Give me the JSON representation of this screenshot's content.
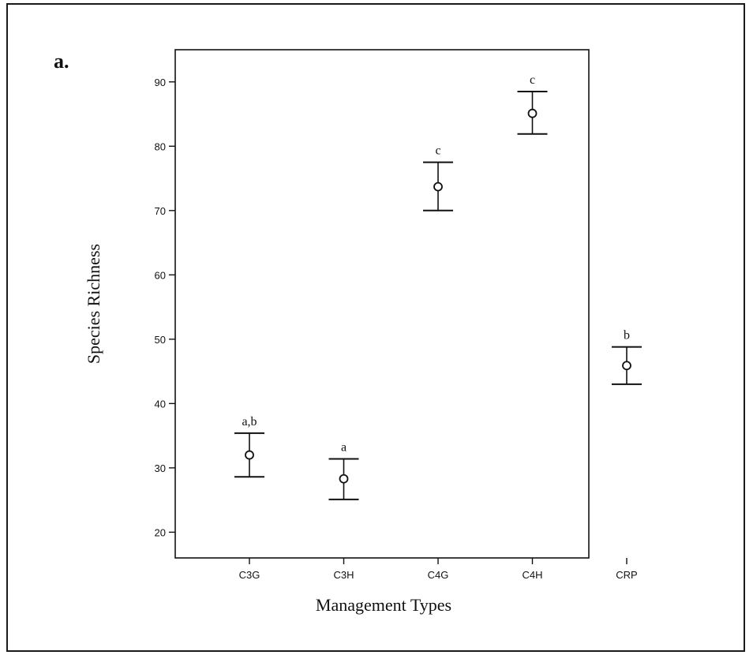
{
  "panel_label": "a.",
  "chart_data": {
    "type": "scatter",
    "subtype": "error-bar",
    "title": "",
    "xlabel": "Management Types",
    "ylabel": "Species Richness",
    "categories": [
      "C3G",
      "C3H",
      "C4G",
      "C4H",
      "CRP"
    ],
    "means": [
      32.0,
      28.3,
      73.7,
      85.1,
      45.9
    ],
    "lower": [
      28.6,
      25.1,
      70.0,
      81.9,
      43.0
    ],
    "upper": [
      35.4,
      31.4,
      77.5,
      88.5,
      48.8
    ],
    "annotations": [
      "a,b",
      "a",
      "c",
      "c",
      "b"
    ],
    "yticks": [
      20,
      30,
      40,
      50,
      60,
      70,
      80,
      90
    ],
    "ylim": [
      16,
      95
    ],
    "grid": false,
    "legend": "none"
  }
}
